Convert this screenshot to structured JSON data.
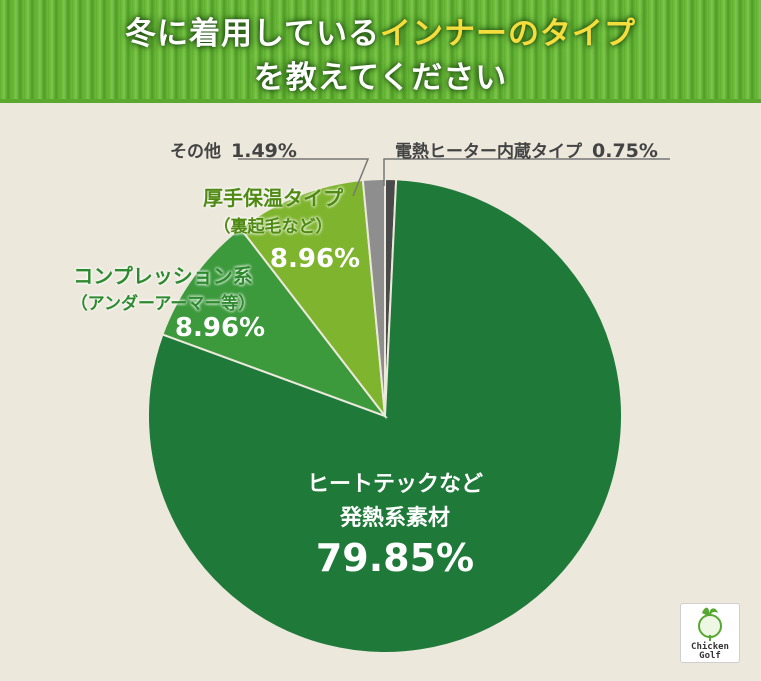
{
  "title": {
    "line1_pre": "冬に着用している",
    "line1_highlight": "インナーのタイプ",
    "line2": "を教えてください"
  },
  "chart_data": {
    "type": "pie",
    "slices": [
      {
        "label": "電熱ヒーター内蔵タイプ",
        "value": 0.75,
        "pct_text": "0.75%",
        "color": "#4a4a4a"
      },
      {
        "label": "ヒートテックなど発熱系素材",
        "value": 79.85,
        "pct_text": "79.85%",
        "color": "#1f7a3a"
      },
      {
        "label": "コンプレッション系（アンダーアーマー等）",
        "value": 8.96,
        "pct_text": "8.96%",
        "color": "#3c9a3c"
      },
      {
        "label": "厚手保温タイプ（裏起毛など）",
        "value": 8.96,
        "pct_text": "8.96%",
        "color": "#7fb52e"
      },
      {
        "label": "その他",
        "value": 1.49,
        "pct_text": "1.49%",
        "color": "#8e8e8e"
      }
    ]
  },
  "labels": {
    "main_line1": "ヒートテックなど",
    "main_line2": "発熱系素材",
    "main_pct": "79.85%",
    "comp_line1": "コンプレッション系",
    "comp_line2": "（アンダーアーマー等）",
    "comp_pct": "8.96%",
    "thick_line1": "厚手保温タイプ",
    "thick_line2": "（裏起毛など）",
    "thick_pct": "8.96%",
    "other_text": "その他",
    "other_pct": "1.49%",
    "heater_text": "電熱ヒーター内蔵タイプ",
    "heater_pct": "0.75%"
  },
  "logo": {
    "line1": "Chicken",
    "line2": "Golf"
  }
}
